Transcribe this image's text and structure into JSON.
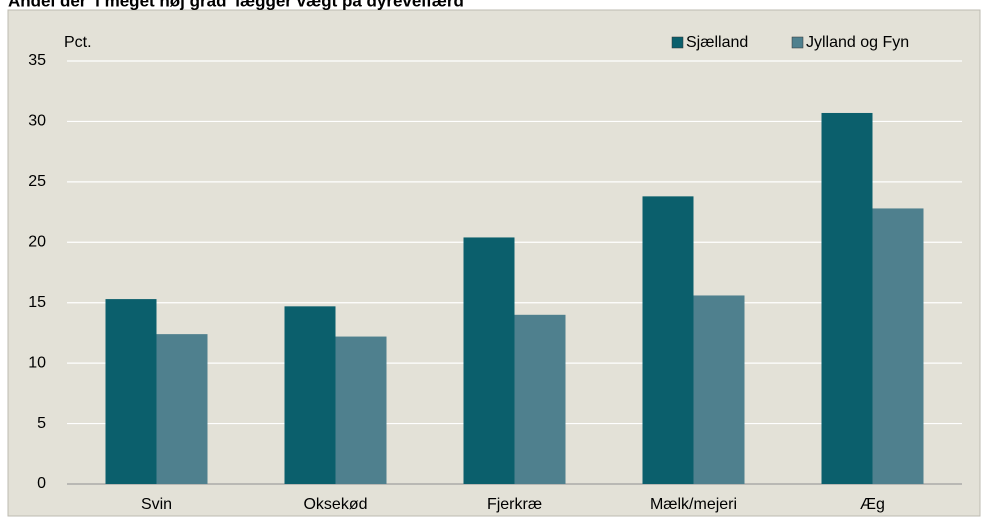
{
  "chart_data": {
    "type": "bar",
    "title": "Andel der 'i meget høj grad' lægger vægt på dyrevelfærd",
    "y_label": "Pct.",
    "categories": [
      "Svin",
      "Oksekød",
      "Fjerkræ",
      "Mælk/mejeri",
      "Æg"
    ],
    "series": [
      {
        "name": "Sjælland",
        "color": "#0b5f6c",
        "values": [
          15.3,
          14.7,
          20.4,
          23.8,
          30.7
        ]
      },
      {
        "name": "Jylland og Fyn",
        "color": "#4f808e",
        "values": [
          12.4,
          12.2,
          14.0,
          15.6,
          22.8
        ]
      }
    ],
    "ylim": [
      0,
      35
    ],
    "yticks": [
      0,
      5,
      10,
      15,
      20,
      25,
      30,
      35
    ],
    "grid": true,
    "legend": "top-right"
  }
}
